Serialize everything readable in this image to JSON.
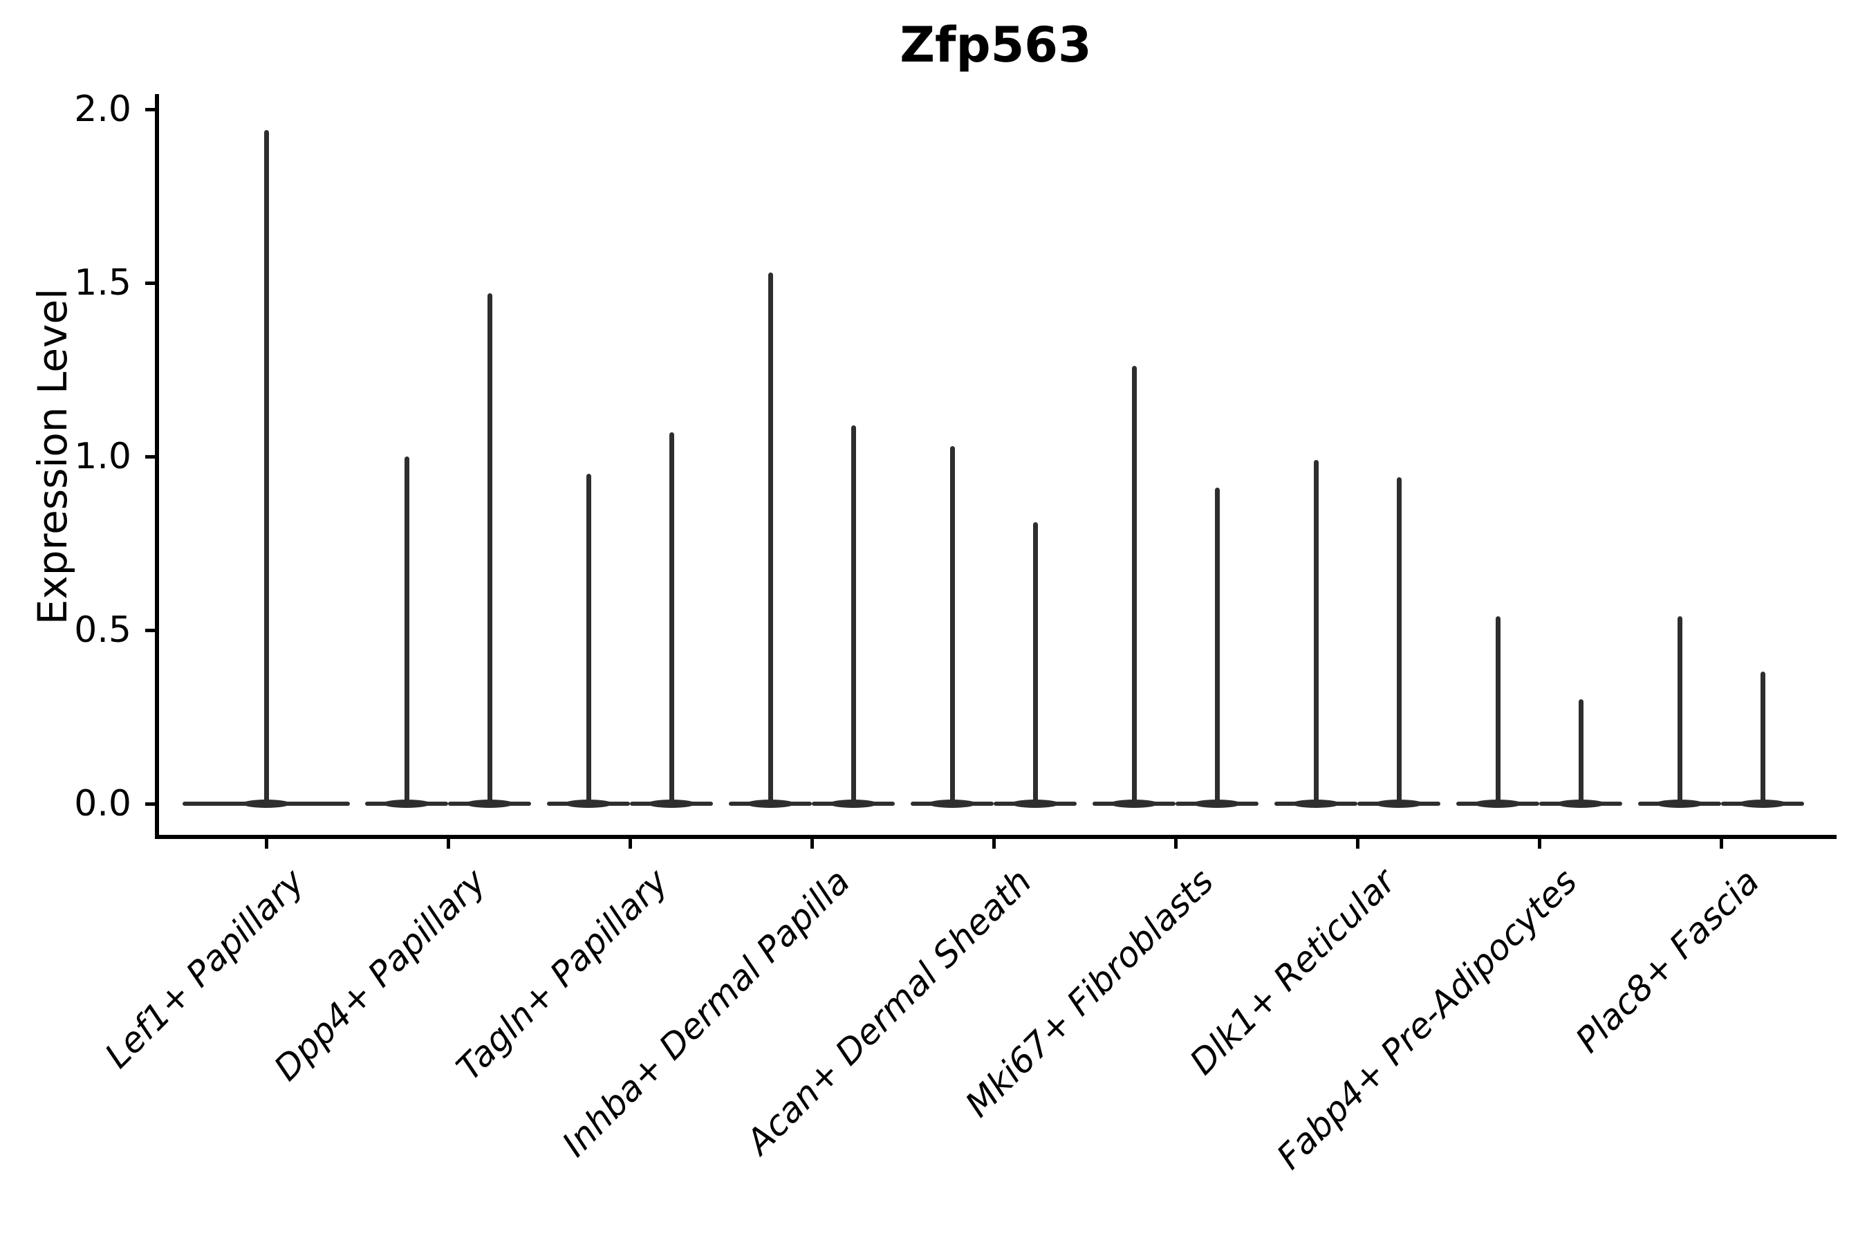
{
  "figure": {
    "background": "#ffffff",
    "ink_color": "#2e2e2e",
    "axis_color": "#000000"
  },
  "chart_data": {
    "type": "violin",
    "title": "Zfp563",
    "ylabel": "Expression Level",
    "xlabel": "",
    "ylim": [
      0,
      2.0
    ],
    "ytick_values": [
      0.0,
      0.5,
      1.0,
      1.5,
      2.0
    ],
    "ytick_labels": [
      "0.0",
      "0.5",
      "1.0",
      "1.5",
      "2.0"
    ],
    "grid": "off",
    "legend": "none",
    "categories": [
      "Lef1+ Papillary",
      "Dpp4+ Papillary",
      "Tagln+ Papillary",
      "Inhba+ Dermal Papilla",
      "Acan+ Dermal Sheath",
      "Mki67+ Fibroblasts",
      "Dlk1+ Reticular",
      "Fabp4+ Pre-Adipocytes",
      "Plac8+ Fascia"
    ],
    "violins": [
      {
        "category": "Lef1+ Papillary",
        "spike_maxima": [
          1.94
        ],
        "baseline_value": 0.0
      },
      {
        "category": "Dpp4+ Papillary",
        "spike_maxima": [
          1.0,
          1.47
        ],
        "baseline_value": 0.0
      },
      {
        "category": "Tagln+ Papillary",
        "spike_maxima": [
          0.95,
          1.07
        ],
        "baseline_value": 0.0
      },
      {
        "category": "Inhba+ Dermal Papilla",
        "spike_maxima": [
          1.53,
          1.09
        ],
        "baseline_value": 0.0
      },
      {
        "category": "Acan+ Dermal Sheath",
        "spike_maxima": [
          1.03,
          0.81
        ],
        "baseline_value": 0.0
      },
      {
        "category": "Mki67+ Fibroblasts",
        "spike_maxima": [
          1.26,
          0.91
        ],
        "baseline_value": 0.0
      },
      {
        "category": "Dlk1+ Reticular",
        "spike_maxima": [
          0.99,
          0.94
        ],
        "baseline_value": 0.0
      },
      {
        "category": "Fabp4+ Pre-Adipocytes",
        "spike_maxima": [
          0.54,
          0.3
        ],
        "baseline_value": 0.0
      },
      {
        "category": "Plac8+ Fascia",
        "spike_maxima": [
          0.54,
          0.38
        ],
        "baseline_value": 0.0
      }
    ]
  }
}
